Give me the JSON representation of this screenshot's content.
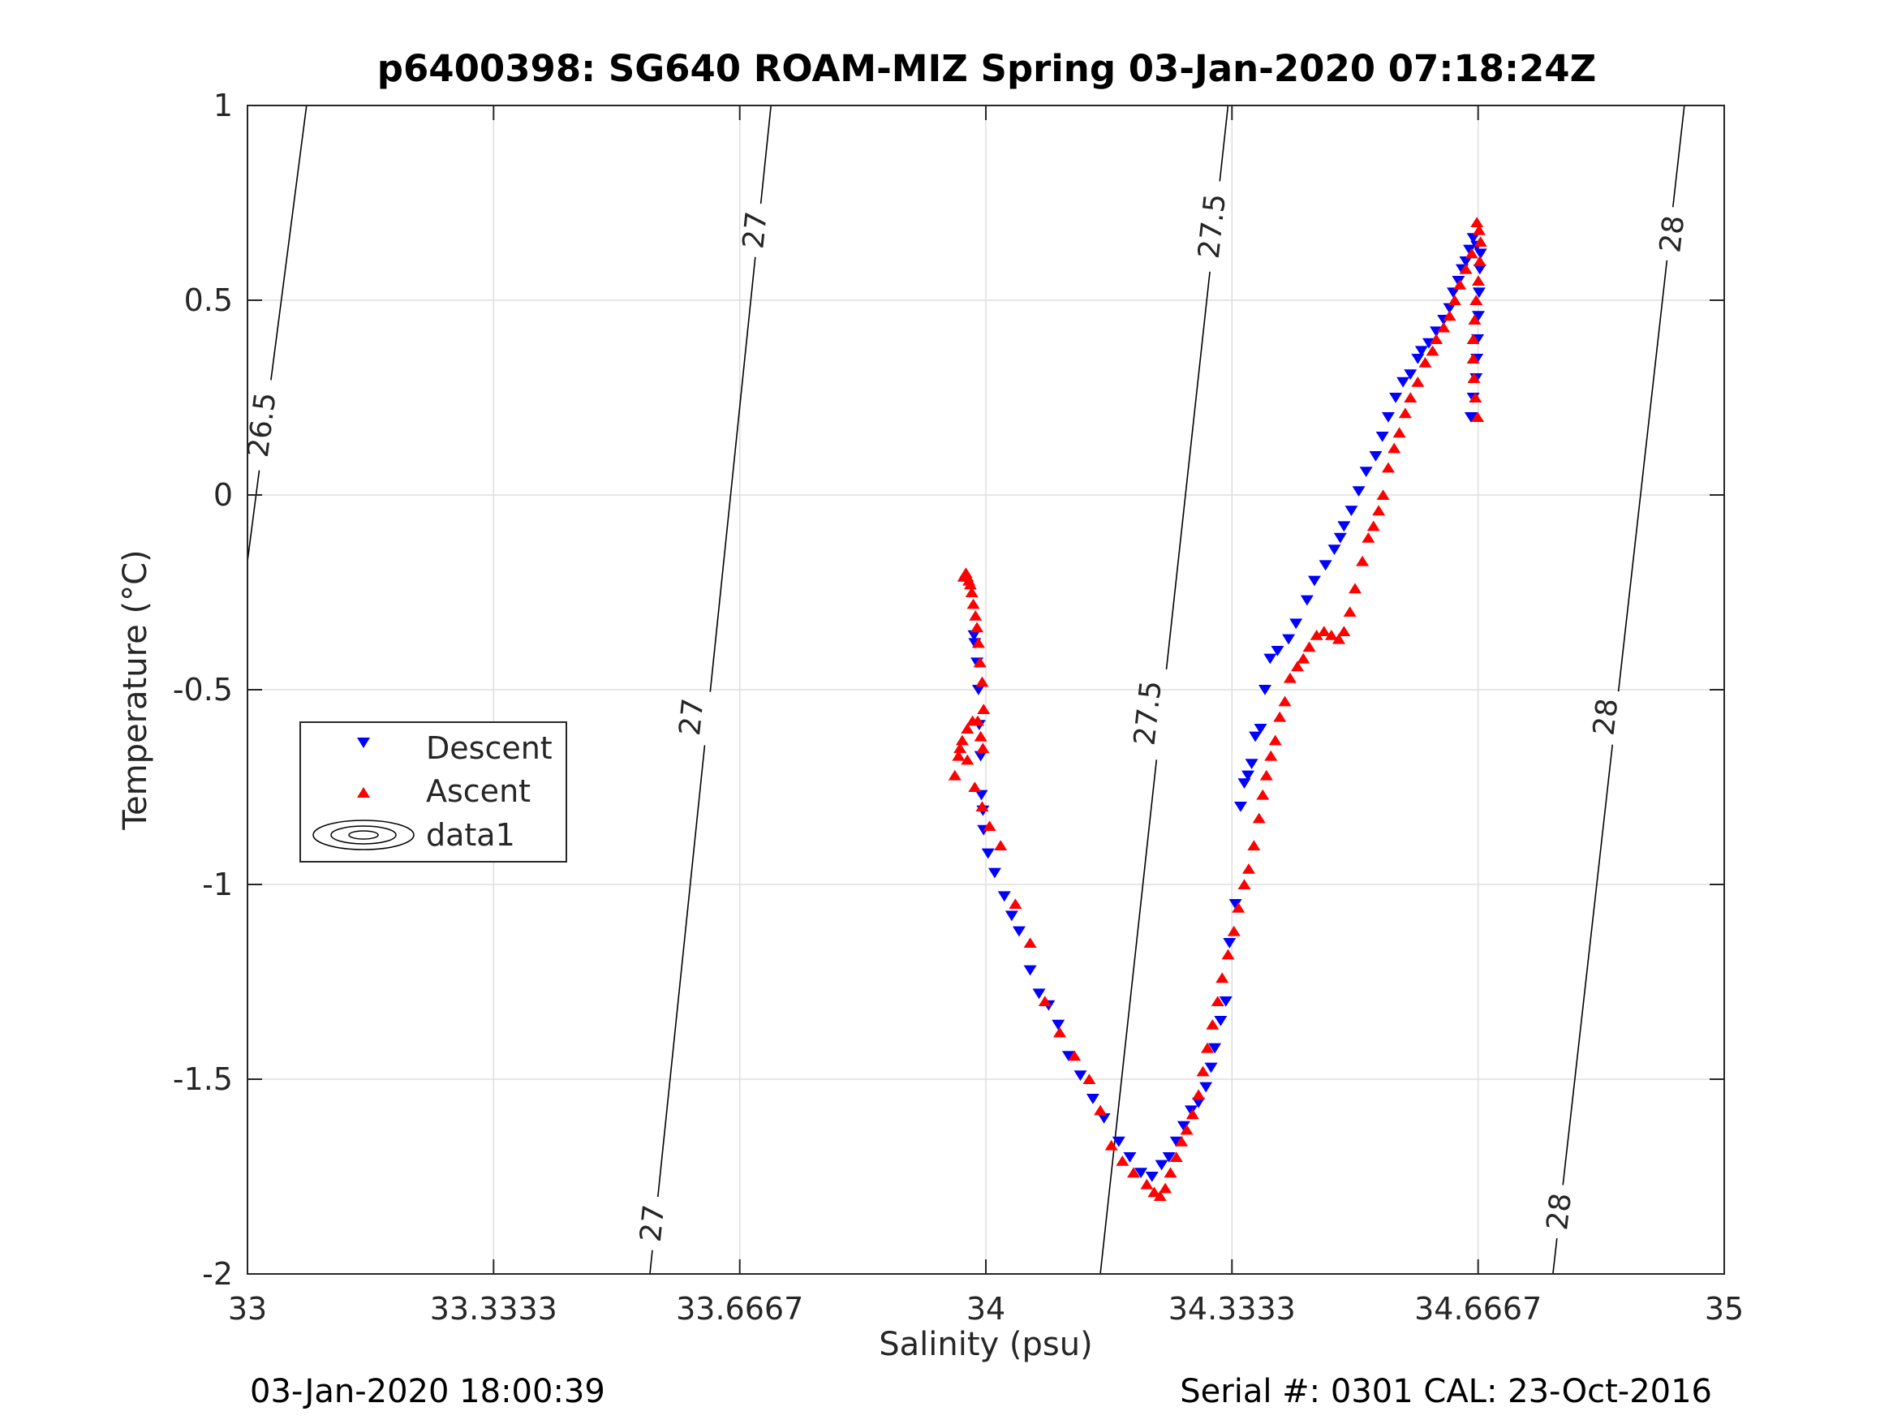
{
  "chart_data": {
    "type": "scatter",
    "title": "p6400398: SG640 ROAM-MIZ Spring 03-Jan-2020 07:18:24Z",
    "xlabel": "Salinity (psu)",
    "ylabel": "Temperature (°C)",
    "xlim": [
      33,
      35
    ],
    "ylim": [
      -2,
      1
    ],
    "xticks": [
      33,
      33.3333,
      33.6667,
      34,
      34.3333,
      34.6667,
      35
    ],
    "xtick_labels": [
      "33",
      "33.3333",
      "33.6667",
      "34",
      "34.3333",
      "34.6667",
      "35"
    ],
    "yticks": [
      -2,
      -1.5,
      -1,
      -0.5,
      0,
      0.5,
      1
    ],
    "ytick_labels": [
      "-2",
      "-1.5",
      "-1",
      "-0.5",
      "0",
      "0.5",
      "1"
    ],
    "grid": true,
    "legend": {
      "placement": "left-middle",
      "entries": [
        {
          "label": "Descent",
          "marker": "triangle-down",
          "color": "#0000ff"
        },
        {
          "label": "Ascent",
          "marker": "triangle-up",
          "color": "#ff0000"
        },
        {
          "label": "data1",
          "marker": "contour",
          "color": "#000000"
        }
      ]
    },
    "contours": [
      {
        "level": "26.5",
        "points": [
          [
            33.0,
            -0.17
          ],
          [
            33.08,
            1.0
          ]
        ],
        "labels": [
          {
            "text": "26.5",
            "at": [
              33.02,
              0.18
            ]
          }
        ]
      },
      {
        "level": "27",
        "points": [
          [
            33.545,
            -2.0
          ],
          [
            33.709,
            1.0
          ]
        ],
        "labels": [
          {
            "text": "27",
            "at": [
              33.549,
              -1.87
            ]
          },
          {
            "text": "27",
            "at": [
              33.602,
              -0.57
            ]
          },
          {
            "text": "27",
            "at": [
              33.688,
              0.68
            ]
          }
        ]
      },
      {
        "level": "27.5",
        "points": [
          [
            34.155,
            -2.0
          ],
          [
            34.328,
            1.0
          ]
        ],
        "labels": [
          {
            "text": "27.5",
            "at": [
              34.22,
              -0.56
            ]
          },
          {
            "text": "27.5",
            "at": [
              34.307,
              0.69
            ]
          }
        ]
      },
      {
        "level": "28",
        "points": [
          [
            34.768,
            -2.0
          ],
          [
            34.946,
            1.0
          ]
        ],
        "labels": [
          {
            "text": "28",
            "at": [
              34.777,
              -1.84
            ]
          },
          {
            "text": "28",
            "at": [
              34.84,
              -0.57
            ]
          },
          {
            "text": "28",
            "at": [
              34.93,
              0.67
            ]
          }
        ]
      }
    ],
    "series": [
      {
        "name": "Descent",
        "marker": "triangle-down",
        "color": "#0000ff",
        "x": [
          34.66,
          34.665,
          34.67,
          34.669,
          34.668,
          34.667,
          34.666,
          34.665,
          34.664,
          34.66,
          34.657,
          34.655,
          34.65,
          34.645,
          34.64,
          34.633,
          34.628,
          34.62,
          34.61,
          34.6,
          34.59,
          34.585,
          34.575,
          34.565,
          34.555,
          34.545,
          34.537,
          34.528,
          34.515,
          34.505,
          34.495,
          34.485,
          34.48,
          34.472,
          34.46,
          34.445,
          34.435,
          34.42,
          34.41,
          34.395,
          34.385,
          34.378,
          34.372,
          34.365,
          34.36,
          34.355,
          34.35,
          34.345,
          34.338,
          34.33,
          34.325,
          34.318,
          34.31,
          34.305,
          34.298,
          34.288,
          34.278,
          34.268,
          34.258,
          34.248,
          34.238,
          34.225,
          34.21,
          34.195,
          34.18,
          34.16,
          34.145,
          34.128,
          34.112,
          34.098,
          34.085,
          34.072,
          34.06,
          34.045,
          34.035,
          34.025,
          34.012,
          34.003,
          33.997,
          33.996,
          33.994,
          33.993,
          33.991,
          33.99,
          33.988,
          33.985,
          33.984
        ],
        "y": [
          0.66,
          0.64,
          0.62,
          0.58,
          0.52,
          0.46,
          0.4,
          0.35,
          0.3,
          0.25,
          0.2,
          0.63,
          0.6,
          0.58,
          0.55,
          0.52,
          0.48,
          0.45,
          0.42,
          0.39,
          0.37,
          0.35,
          0.31,
          0.29,
          0.25,
          0.2,
          0.15,
          0.1,
          0.06,
          0.01,
          -0.04,
          -0.08,
          -0.11,
          -0.14,
          -0.18,
          -0.22,
          -0.27,
          -0.33,
          -0.37,
          -0.4,
          -0.42,
          -0.5,
          -0.6,
          -0.62,
          -0.69,
          -0.72,
          -0.74,
          -0.8,
          -1.05,
          -1.15,
          -1.3,
          -1.35,
          -1.42,
          -1.47,
          -1.52,
          -1.56,
          -1.58,
          -1.62,
          -1.66,
          -1.7,
          -1.72,
          -1.75,
          -1.74,
          -1.7,
          -1.66,
          -1.6,
          -1.55,
          -1.49,
          -1.44,
          -1.36,
          -1.31,
          -1.28,
          -1.22,
          -1.12,
          -1.08,
          -1.03,
          -0.97,
          -0.92,
          -0.86,
          -0.81,
          -0.77,
          -0.67,
          -0.59,
          -0.5,
          -0.43,
          -0.38,
          -0.36
        ]
      },
      {
        "name": "Ascent",
        "marker": "triangle-up",
        "color": "#ff0000",
        "x": [
          34.665,
          34.668,
          34.67,
          34.669,
          34.667,
          34.664,
          34.662,
          34.66,
          34.66,
          34.661,
          34.663,
          34.666,
          34.658,
          34.65,
          34.642,
          34.635,
          34.628,
          34.62,
          34.61,
          34.605,
          34.595,
          34.585,
          34.575,
          34.568,
          34.56,
          34.553,
          34.545,
          34.538,
          34.532,
          34.525,
          34.518,
          34.51,
          34.5,
          34.493,
          34.485,
          34.478,
          34.468,
          34.458,
          34.448,
          34.438,
          34.43,
          34.422,
          34.412,
          34.405,
          34.398,
          34.392,
          34.386,
          34.38,
          34.375,
          34.37,
          34.363,
          34.356,
          34.35,
          34.342,
          34.336,
          34.328,
          34.32,
          34.314,
          34.307,
          34.3,
          34.294,
          34.288,
          34.28,
          34.272,
          34.265,
          34.258,
          34.25,
          34.243,
          34.236,
          34.228,
          34.218,
          34.2,
          34.185,
          34.17,
          34.155,
          34.14,
          34.12,
          34.1,
          34.08,
          34.06,
          34.04,
          34.02,
          34.005,
          33.995,
          33.985,
          33.975,
          33.965,
          33.958,
          33.963,
          33.968,
          33.975,
          33.982,
          33.989,
          33.993,
          33.996,
          33.997,
          33.995,
          33.992,
          33.99,
          33.988,
          33.986,
          33.983,
          33.981,
          33.979,
          33.977,
          33.975,
          33.973,
          33.97
        ],
        "y": [
          0.7,
          0.68,
          0.65,
          0.6,
          0.55,
          0.5,
          0.45,
          0.4,
          0.35,
          0.3,
          0.25,
          0.2,
          0.62,
          0.58,
          0.54,
          0.5,
          0.46,
          0.43,
          0.4,
          0.37,
          0.34,
          0.29,
          0.25,
          0.21,
          0.16,
          0.12,
          0.07,
          0.0,
          -0.04,
          -0.08,
          -0.11,
          -0.17,
          -0.24,
          -0.3,
          -0.35,
          -0.37,
          -0.36,
          -0.35,
          -0.36,
          -0.39,
          -0.42,
          -0.44,
          -0.47,
          -0.53,
          -0.57,
          -0.63,
          -0.67,
          -0.72,
          -0.77,
          -0.83,
          -0.9,
          -0.96,
          -1.0,
          -1.06,
          -1.12,
          -1.18,
          -1.24,
          -1.3,
          -1.36,
          -1.42,
          -1.48,
          -1.54,
          -1.59,
          -1.63,
          -1.66,
          -1.7,
          -1.74,
          -1.78,
          -1.8,
          -1.79,
          -1.77,
          -1.74,
          -1.71,
          -1.67,
          -1.58,
          -1.5,
          -1.44,
          -1.38,
          -1.3,
          -1.15,
          -1.05,
          -0.9,
          -0.85,
          -0.8,
          -0.75,
          -0.68,
          -0.65,
          -0.72,
          -0.67,
          -0.63,
          -0.6,
          -0.58,
          -0.58,
          -0.62,
          -0.65,
          -0.55,
          -0.48,
          -0.43,
          -0.38,
          -0.34,
          -0.31,
          -0.28,
          -0.25,
          -0.23,
          -0.22,
          -0.21,
          -0.2,
          -0.21
        ]
      }
    ]
  },
  "footer": {
    "timestamp": "03-Jan-2020 18:00:39",
    "serial_cal": "Serial #: 0301  CAL: 23-Oct-2016"
  }
}
